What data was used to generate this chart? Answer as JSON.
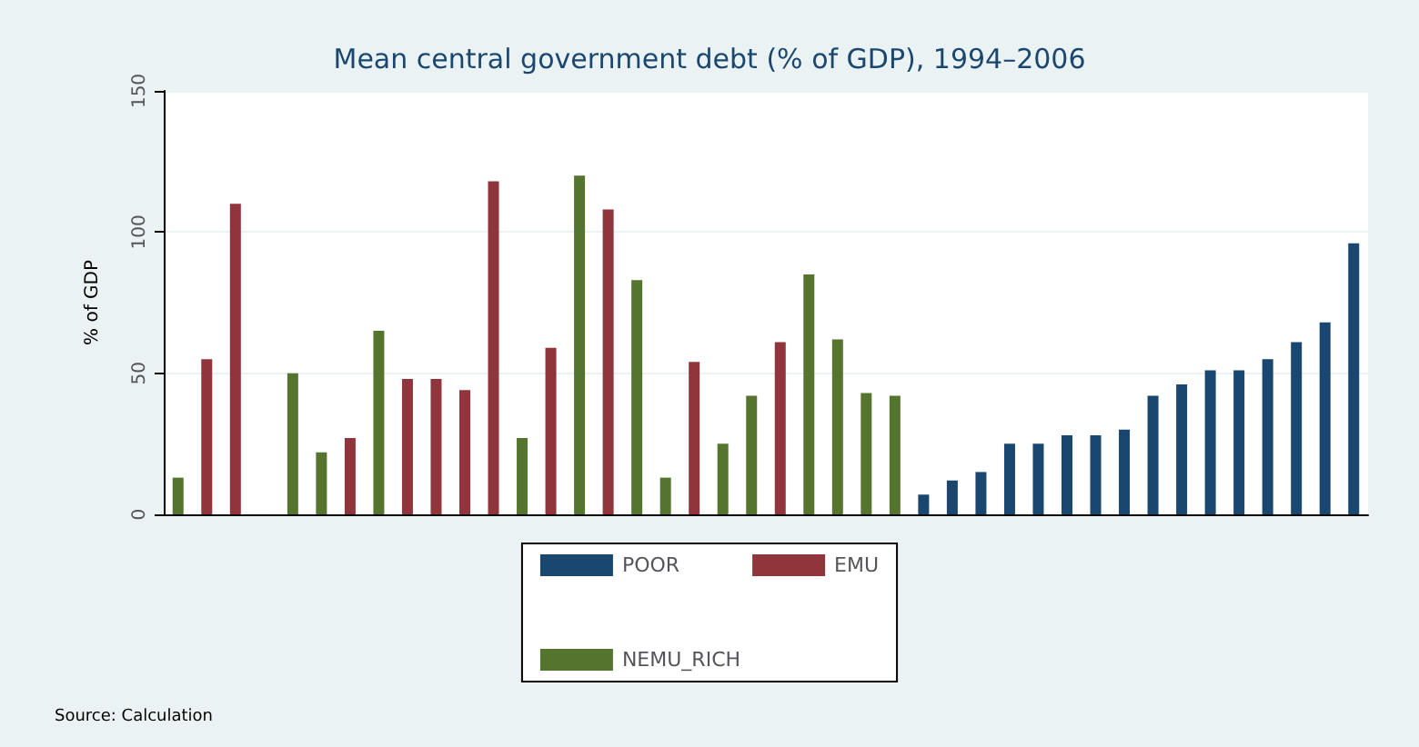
{
  "chart_data": {
    "type": "bar",
    "title": "Mean central government debt (% of GDP), 1994–2006",
    "ylabel": "% of GDP",
    "categories": [
      null,
      null,
      null,
      null,
      null,
      null,
      null,
      null,
      null,
      null,
      null,
      null,
      null,
      null,
      null,
      null,
      null,
      null,
      null,
      null,
      null,
      null,
      null,
      null,
      null,
      null,
      null,
      null,
      null,
      null,
      null,
      null,
      null,
      null,
      null,
      null,
      null,
      null,
      null,
      null,
      null,
      null
    ],
    "series": [
      {
        "name": "POOR",
        "color": "#1a476f",
        "values": [
          null,
          null,
          null,
          null,
          null,
          null,
          null,
          null,
          null,
          null,
          null,
          null,
          null,
          null,
          null,
          null,
          null,
          null,
          null,
          null,
          null,
          null,
          null,
          null,
          null,
          null,
          7,
          12,
          15,
          25,
          25,
          28,
          28,
          30,
          42,
          46,
          51,
          51,
          55,
          61,
          68,
          96
        ]
      },
      {
        "name": "EMU",
        "color": "#90353b",
        "values": [
          null,
          55,
          110,
          null,
          null,
          null,
          27,
          null,
          48,
          48,
          44,
          118,
          null,
          59,
          null,
          108,
          null,
          null,
          54,
          null,
          null,
          61,
          null,
          null,
          null,
          null,
          null,
          null,
          null,
          null,
          null,
          null,
          null,
          null,
          null,
          null,
          null,
          null,
          null,
          null,
          null,
          null
        ]
      },
      {
        "name": "NEMU_RICH",
        "color": "#55752f",
        "values": [
          13,
          null,
          null,
          null,
          50,
          22,
          null,
          65,
          null,
          null,
          null,
          null,
          27,
          null,
          120,
          null,
          83,
          13,
          null,
          25,
          42,
          null,
          85,
          62,
          43,
          42,
          null,
          null,
          null,
          null,
          null,
          null,
          null,
          null,
          null,
          null,
          null,
          null,
          null,
          null,
          null,
          null
        ]
      }
    ],
    "ylim": [
      0,
      150
    ],
    "yticks": [
      0,
      50,
      100,
      150
    ],
    "grid": "y",
    "legend": "bottom",
    "annotations": [
      "Source: Calculation"
    ]
  }
}
